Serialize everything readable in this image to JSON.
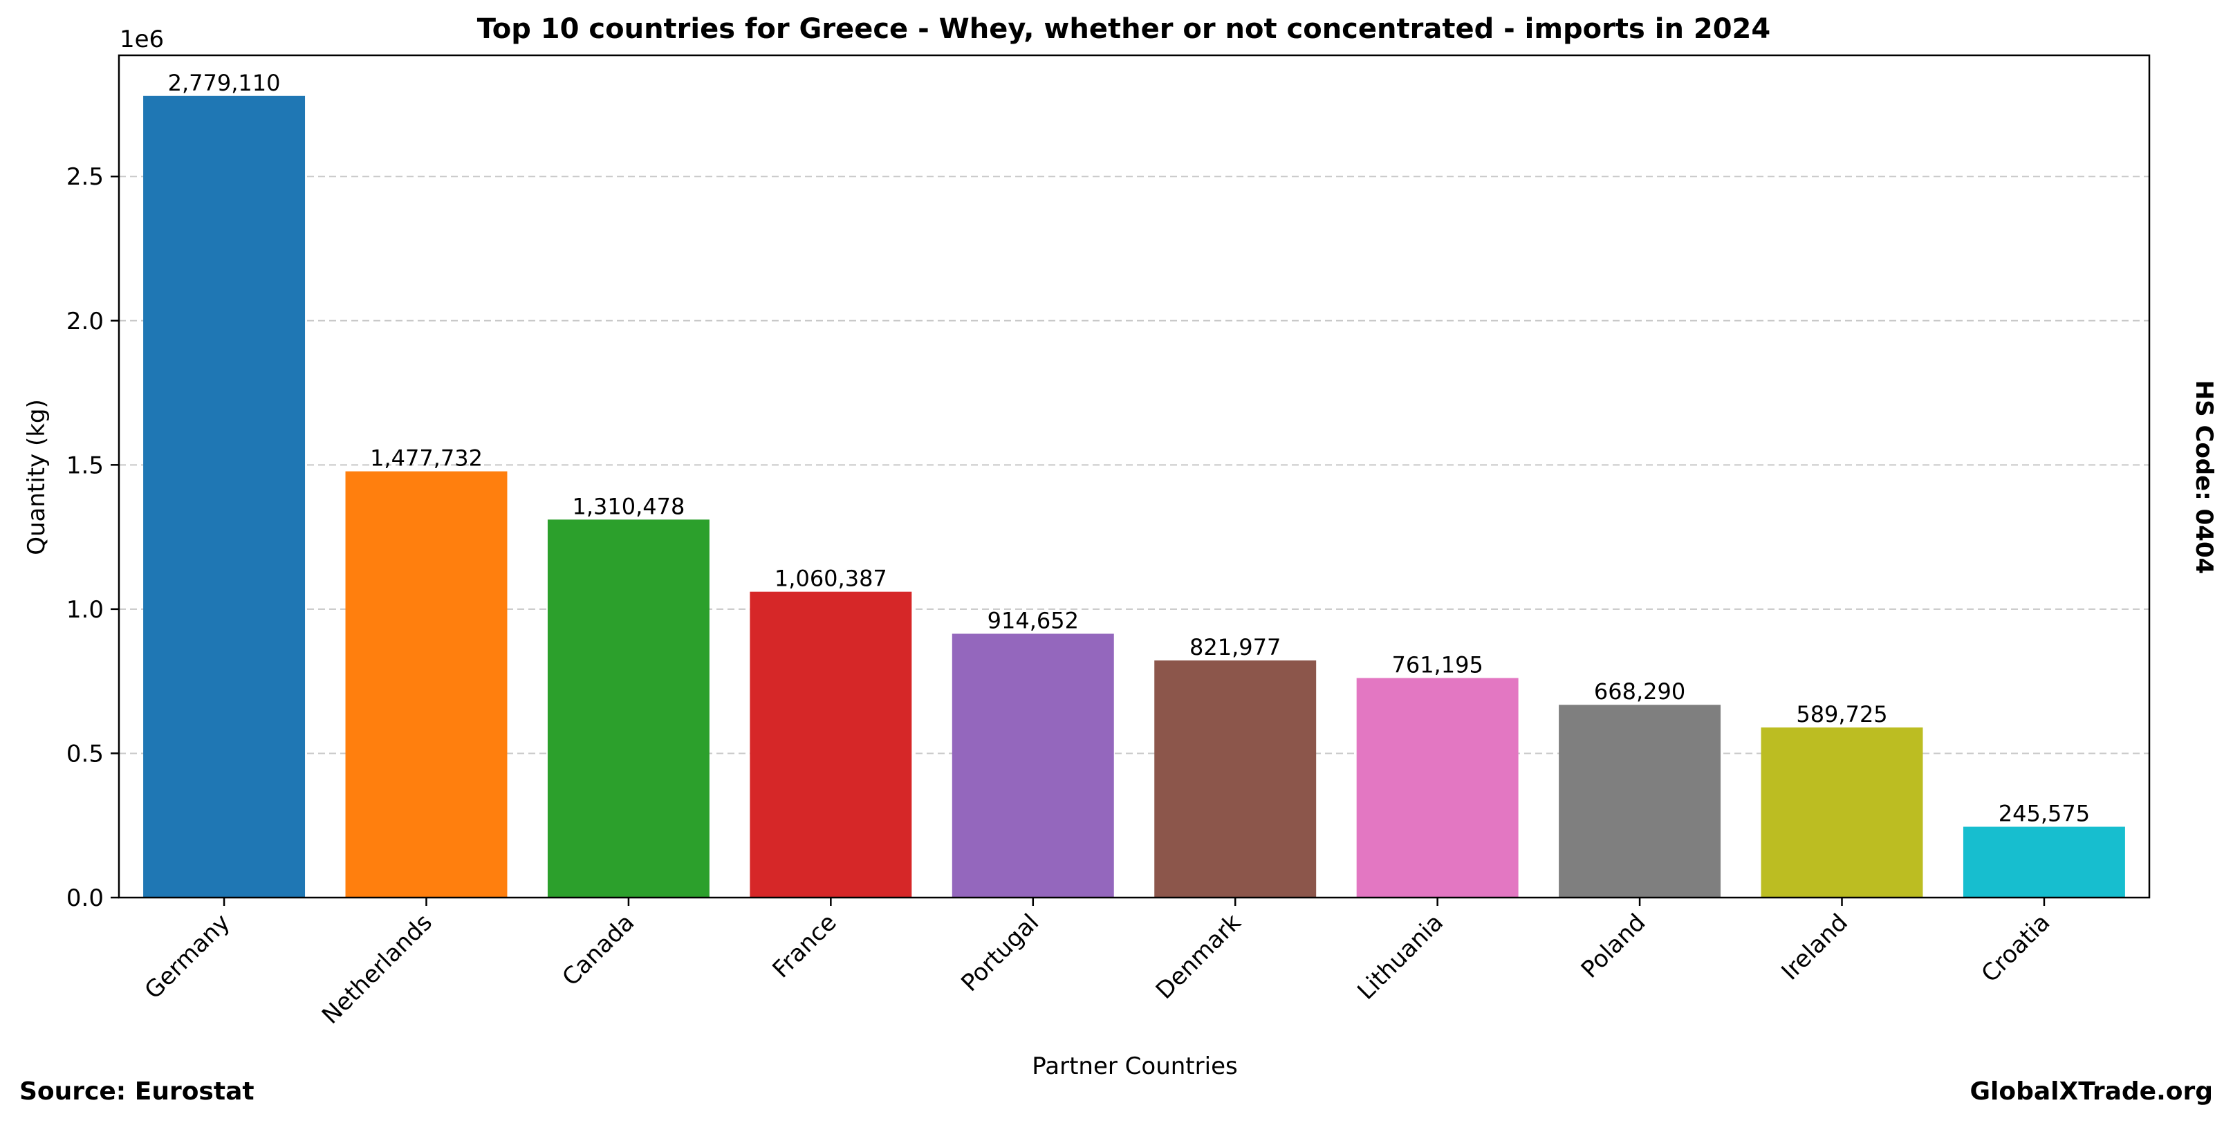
{
  "chart_data": {
    "type": "bar",
    "title": "Top 10 countries for Greece - Whey, whether or not concentrated - imports in 2024",
    "xlabel": "Partner Countries",
    "ylabel": "Quantity (kg)",
    "y_scale_label": "1e6",
    "ylim": [
      0,
      2920000
    ],
    "yticks": [
      {
        "value": 0,
        "label": "0.0"
      },
      {
        "value": 500000,
        "label": "0.5"
      },
      {
        "value": 1000000,
        "label": "1.0"
      },
      {
        "value": 1500000,
        "label": "1.5"
      },
      {
        "value": 2000000,
        "label": "2.0"
      },
      {
        "value": 2500000,
        "label": "2.5"
      }
    ],
    "grid": "y-dashed",
    "categories": [
      "Germany",
      "Netherlands",
      "Canada",
      "France",
      "Portugal",
      "Denmark",
      "Lithuania",
      "Poland",
      "Ireland",
      "Croatia"
    ],
    "values": [
      2779110,
      1477732,
      1310478,
      1060387,
      914652,
      821977,
      761195,
      668290,
      589725,
      245575
    ],
    "value_labels": [
      "2,779,110",
      "1,477,732",
      "1,310,478",
      "1,060,387",
      "914,652",
      "821,977",
      "761,195",
      "668,290",
      "589,725",
      "245,575"
    ],
    "colors": [
      "#1f77b4",
      "#ff7f0e",
      "#2ca02c",
      "#d62728",
      "#9467bd",
      "#8c564b",
      "#e377c2",
      "#7f7f7f",
      "#bcbd22",
      "#17becf"
    ]
  },
  "side_label": "HS Code: 0404",
  "footer": {
    "source": "Source: Eurostat",
    "brand": "GlobalXTrade.org"
  }
}
